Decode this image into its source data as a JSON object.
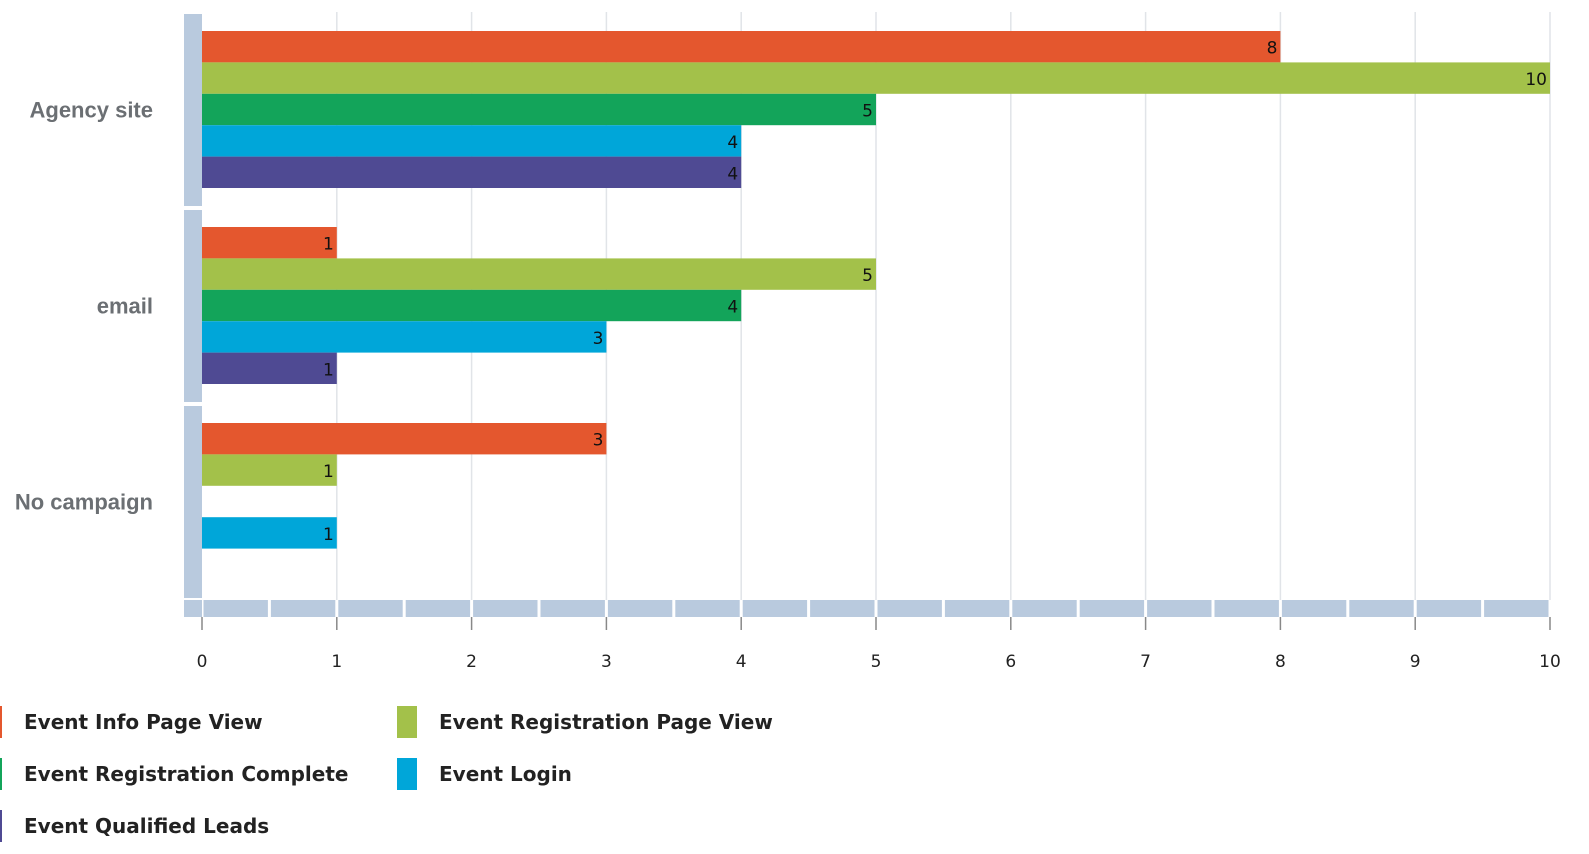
{
  "chart_data": {
    "type": "bar",
    "orientation": "horizontal",
    "categories": [
      "Agency site",
      "email",
      "No campaign"
    ],
    "series": [
      {
        "name": "Event Info Page View",
        "color": "#E4572E",
        "values": [
          8,
          1,
          3
        ]
      },
      {
        "name": "Event Registration Page View",
        "color": "#A3C14A",
        "values": [
          10,
          5,
          1
        ]
      },
      {
        "name": "Event Registration Complete",
        "color": "#13A45A",
        "values": [
          5,
          4,
          null
        ]
      },
      {
        "name": "Event Login",
        "color": "#00A6D9",
        "values": [
          4,
          3,
          1
        ]
      },
      {
        "name": "Event Qualified Leads",
        "color": "#4F4A93",
        "values": [
          4,
          1,
          null
        ]
      }
    ],
    "xlim": [
      0,
      10
    ],
    "xticks": [
      "0",
      "1",
      "2",
      "3",
      "4",
      "5",
      "6",
      "7",
      "8",
      "9",
      "10"
    ],
    "grid": true,
    "legend_position": "bottom-left",
    "data_labels": true
  }
}
